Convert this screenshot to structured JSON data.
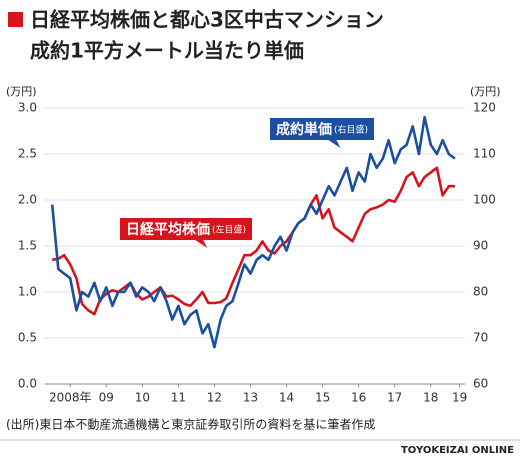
{
  "chart_data": {
    "type": "line",
    "title": [
      "日経平均株価と都心3区中古マンション",
      "成約1平方メートル当たり単価"
    ],
    "y_unit": "(万円)",
    "y2_unit": "(万円)",
    "source": "(出所)東日本不動産流通機構と東京証券取引所の資料を基に筆者作成",
    "credit": "TOYOKEIZAI ONLINE",
    "x": [
      2008,
      2008.17,
      2008.33,
      2008.5,
      2008.67,
      2008.83,
      2009,
      2009.17,
      2009.33,
      2009.5,
      2009.67,
      2009.83,
      2010,
      2010.17,
      2010.33,
      2010.5,
      2010.67,
      2010.83,
      2011,
      2011.17,
      2011.33,
      2011.5,
      2011.67,
      2011.83,
      2012,
      2012.17,
      2012.33,
      2012.5,
      2012.67,
      2012.83,
      2013,
      2013.17,
      2013.33,
      2013.5,
      2013.67,
      2013.83,
      2014,
      2014.17,
      2014.33,
      2014.5,
      2014.67,
      2014.83,
      2015,
      2015.17,
      2015.33,
      2015.5,
      2015.67,
      2015.83,
      2016,
      2016.17,
      2016.33,
      2016.5,
      2016.67,
      2016.83,
      2017,
      2017.17,
      2017.33,
      2017.5,
      2017.67,
      2017.83,
      2018,
      2018.17,
      2018.33,
      2018.5,
      2018.67,
      2018.83,
      2019,
      2019.17
    ],
    "series": [
      {
        "name": "日経平均株価",
        "scale_note": "(左目盛)",
        "color": "#d7141c",
        "values": [
          1.35,
          1.36,
          1.4,
          1.3,
          1.15,
          0.87,
          0.8,
          0.76,
          0.92,
          0.98,
          1.02,
          1.0,
          1.05,
          1.1,
          0.98,
          0.92,
          0.95,
          1.0,
          1.05,
          0.95,
          0.96,
          0.92,
          0.87,
          0.85,
          0.92,
          1.0,
          0.88,
          0.88,
          0.89,
          0.93,
          1.1,
          1.25,
          1.4,
          1.4,
          1.45,
          1.55,
          1.45,
          1.42,
          1.5,
          1.55,
          1.65,
          1.75,
          1.8,
          1.95,
          2.05,
          1.8,
          1.9,
          1.7,
          1.65,
          1.6,
          1.55,
          1.7,
          1.85,
          1.9,
          1.92,
          1.95,
          2.0,
          1.98,
          2.1,
          2.25,
          2.3,
          2.15,
          2.25,
          2.3,
          2.35,
          2.05,
          2.15,
          2.15
        ]
      },
      {
        "name": "成約単価",
        "scale_note": "(右目盛)",
        "color": "#1c4fa0",
        "axis": "y2",
        "values": [
          99,
          85,
          84,
          83,
          76,
          80,
          79,
          82,
          78,
          81,
          77,
          80,
          80,
          82,
          79,
          81,
          80,
          78,
          81,
          78,
          74,
          77,
          73,
          75,
          76,
          71,
          73,
          68,
          74,
          77,
          78,
          82,
          86,
          84,
          87,
          88,
          87,
          90,
          92,
          89,
          93,
          95,
          96,
          99,
          97,
          100,
          103,
          101,
          104,
          107,
          102,
          106,
          104,
          110,
          107,
          109,
          113,
          108,
          111,
          112,
          116,
          110,
          118,
          112,
          110,
          113,
          110,
          109
        ]
      }
    ],
    "xlim": [
      2007.8,
      2019.45
    ],
    "xticks": [
      {
        "value": 2008.5,
        "label": "2008年"
      },
      {
        "value": 2009.5,
        "label": "09"
      },
      {
        "value": 2010.5,
        "label": "10"
      },
      {
        "value": 2011.5,
        "label": "11"
      },
      {
        "value": 2012.5,
        "label": "12"
      },
      {
        "value": 2013.5,
        "label": "13"
      },
      {
        "value": 2014.5,
        "label": "14"
      },
      {
        "value": 2015.5,
        "label": "15"
      },
      {
        "value": 2016.5,
        "label": "16"
      },
      {
        "value": 2017.5,
        "label": "17"
      },
      {
        "value": 2018.5,
        "label": "18"
      },
      {
        "value": 2019.3,
        "label": "19"
      }
    ],
    "ylim": [
      0,
      3
    ],
    "yticks": [
      {
        "value": 0,
        "label": "0.0"
      },
      0.5,
      {
        "value": 1,
        "label": "1.0"
      },
      1.5,
      {
        "value": 2,
        "label": "2.0"
      },
      2.5,
      {
        "value": 3,
        "label": "3.0"
      }
    ],
    "y2lim": [
      60,
      120
    ],
    "y2ticks": [
      60,
      70,
      80,
      90,
      100,
      110,
      120
    ],
    "grid": true
  }
}
